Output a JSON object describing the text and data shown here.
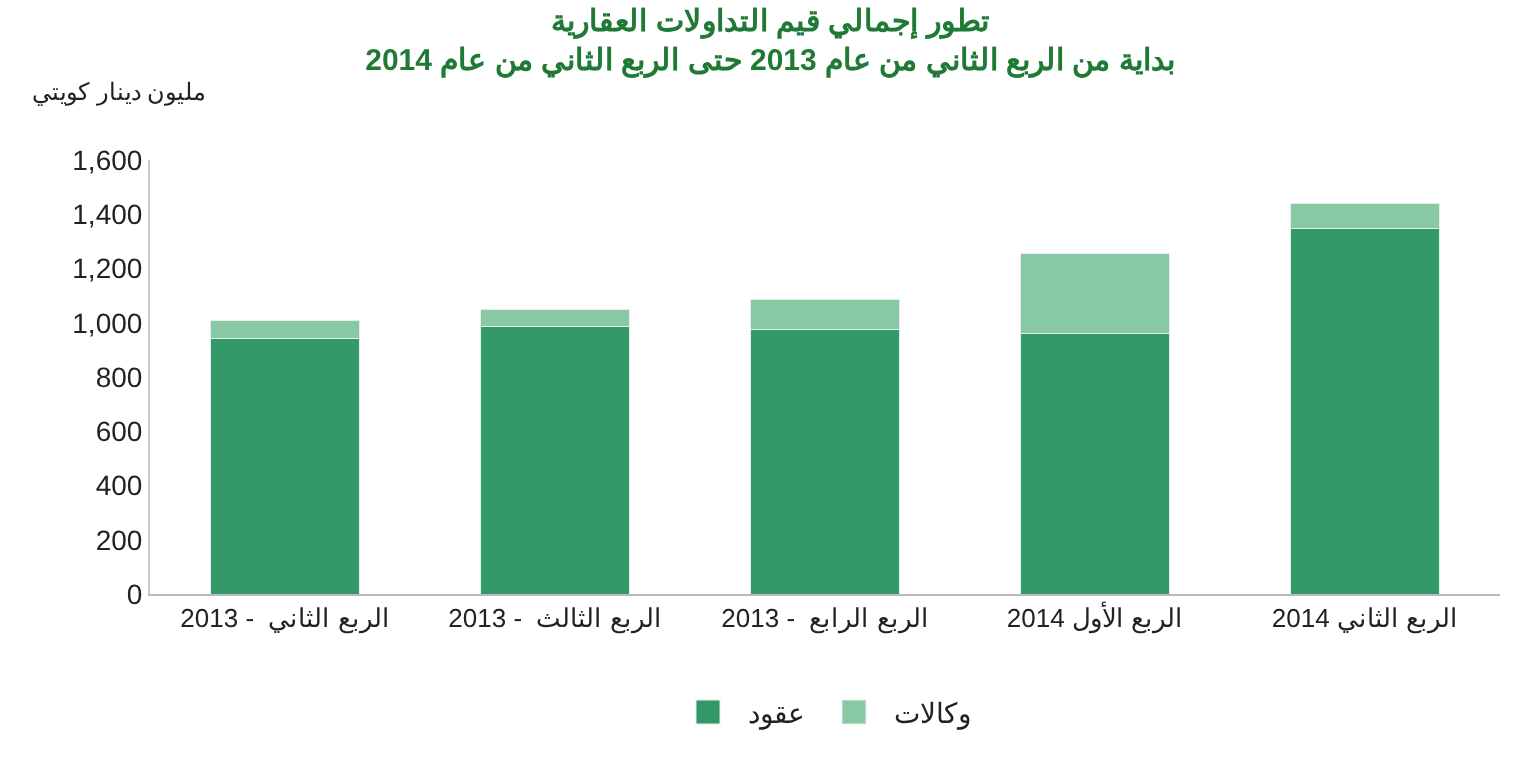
{
  "chart_data": {
    "type": "bar",
    "stacked": true,
    "title": "تطور إجمالي قيم التداولات العقارية",
    "subtitle": "بداية من الربع الثاني من عام 2013 حتى الربع الثاني من عام 2014",
    "ylabel": "مليون دينار كويتي",
    "categories": [
      "الربع الثاني  - 2013",
      "الربع الثالث  - 2013",
      "الربع الرابع  - 2013",
      "الربع الأول 2014",
      "الربع الثاني 2014"
    ],
    "series": [
      {
        "name": "عقود",
        "color": "#339966",
        "values": [
          943,
          988,
          974,
          960,
          1349
        ]
      },
      {
        "name": "وكالات",
        "color": "#88c9a4",
        "values": [
          65,
          62,
          110,
          296,
          89
        ]
      }
    ],
    "ylim": [
      0,
      1600
    ],
    "yticks": [
      0,
      {
        "value": 200,
        "label": "200"
      },
      {
        "value": 400,
        "label": "400"
      },
      {
        "value": 600,
        "label": "600"
      },
      {
        "value": 800,
        "label": "800"
      },
      {
        "value": 1000,
        "label": "1,000"
      },
      {
        "value": 1200,
        "label": "1,200"
      },
      {
        "value": 1400,
        "label": "1,400"
      },
      {
        "value": 1600,
        "label": "1,600"
      }
    ],
    "legend": "bottom"
  }
}
